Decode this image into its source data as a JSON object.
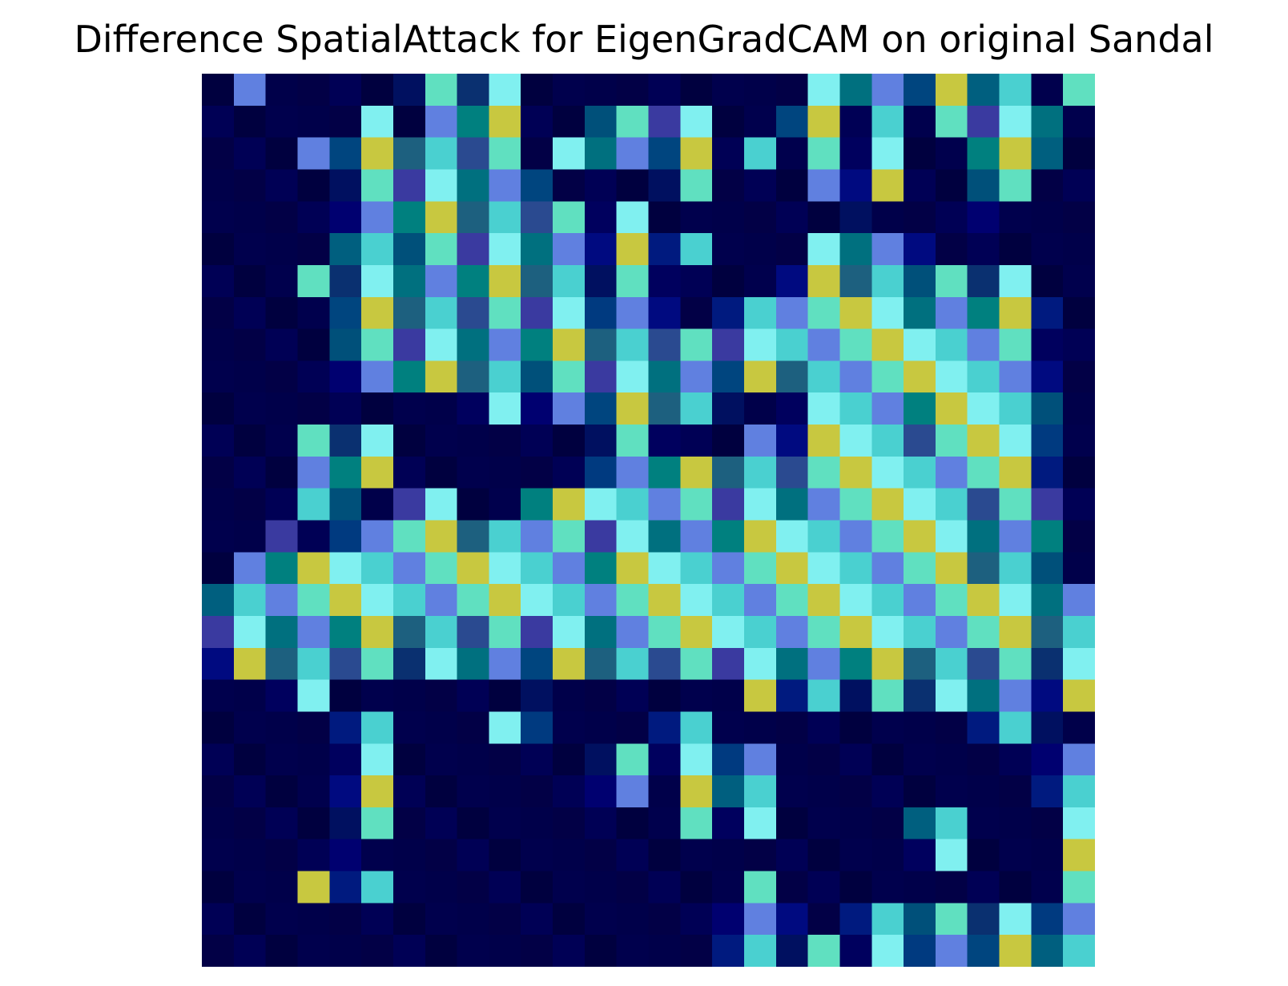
{
  "figure": {
    "title": "Difference SpatialAttack for EigenGradCAM on original Sandal"
  },
  "image": {
    "kind": "heatmap-overlay",
    "colormap": "jet-like (dark blue low, cyan/green mid, yellow high)",
    "grid_rows": 28,
    "grid_cols": 28,
    "axes_visible": false,
    "colors": {
      "background": "#ffffff",
      "low": "#00003f",
      "mid": "#00807f",
      "high": "#c8c840"
    }
  }
}
